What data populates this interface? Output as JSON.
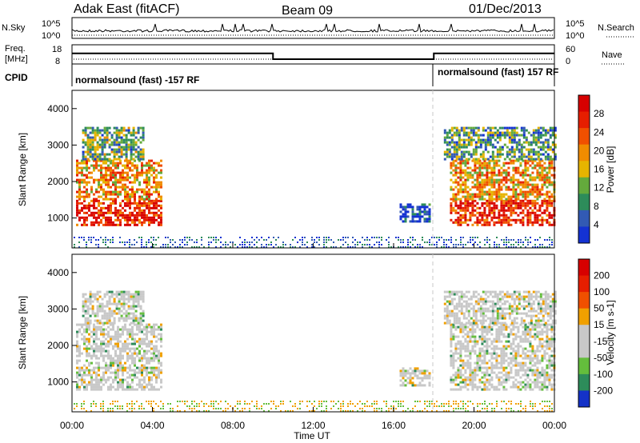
{
  "header": {
    "station": "Adak East (fitACF)",
    "beam": "Beam 09",
    "date": "01/Dec/2013"
  },
  "top_panels": {
    "nsky_label": "N.Sky",
    "nsky_ticks": [
      "10^5",
      "10^0"
    ],
    "nsearch_label": "N.Search",
    "freq_label_1": "Freq.",
    "freq_label_2": "[MHz]",
    "freq_ticks": [
      "18",
      "8"
    ],
    "nave_label": "Nave",
    "nave_ticks": [
      "60",
      "0"
    ],
    "cpid_label": "CPID",
    "cpid_left": "normalsound (fast) -157 RF",
    "cpid_right": "normalsound (fast) 157 RF"
  },
  "chart_data": [
    {
      "type": "line",
      "name": "frequency",
      "x_hours": [
        0,
        10,
        10,
        18,
        18,
        24
      ],
      "freq_mhz": [
        13.5,
        13.5,
        10.5,
        10.5,
        13.5,
        13.5
      ],
      "ylim": [
        8,
        18
      ]
    },
    {
      "type": "heatmap",
      "name": "power",
      "ylabel": "Slant Range [km]",
      "yticks": [
        "4000",
        "3000",
        "2000",
        "1000"
      ],
      "ylim": [
        180,
        4500
      ],
      "colorbar_label": "Power [dB]",
      "colorbar_ticks": [
        "28",
        "24",
        "20",
        "16",
        "12",
        "8",
        "4"
      ],
      "colors": [
        "#1432d2",
        "#325ab4",
        "#2d8c5a",
        "#64aa3c",
        "#e6b400",
        "#f08c00",
        "#f05000",
        "#e61e00",
        "#d70000"
      ],
      "regions": [
        {
          "x": [
            0.2,
            4.4
          ],
          "r": [
            800,
            1500
          ],
          "level": 0.85
        },
        {
          "x": [
            0.2,
            4.4
          ],
          "r": [
            1500,
            2600
          ],
          "level": 0.6
        },
        {
          "x": [
            0.5,
            3.5
          ],
          "r": [
            2600,
            3500
          ],
          "level": 0.35
        },
        {
          "x": [
            16.3,
            17.8
          ],
          "r": [
            900,
            1400
          ],
          "level": 0.1
        },
        {
          "x": [
            18.8,
            24
          ],
          "r": [
            800,
            1500
          ],
          "level": 0.85
        },
        {
          "x": [
            18.8,
            24
          ],
          "r": [
            1500,
            2600
          ],
          "level": 0.6
        },
        {
          "x": [
            18.5,
            24
          ],
          "r": [
            2600,
            3500
          ],
          "level": 0.3
        }
      ]
    },
    {
      "type": "heatmap",
      "name": "velocity",
      "ylabel": "Slant Range [km]",
      "yticks": [
        "4000",
        "3000",
        "2000",
        "1000"
      ],
      "ylim": [
        180,
        4500
      ],
      "colorbar_label": "Velocity [m s-1]",
      "colorbar_ticks": [
        "200",
        "100",
        "50",
        "15",
        "-15",
        "-50",
        "-100",
        "-200"
      ],
      "colors": [
        "#1432c8",
        "#2d8c5a",
        "#64be3c",
        "#c8c8c8",
        "#c8c8c8",
        "#f0a000",
        "#f05000",
        "#e61e00",
        "#d70000"
      ],
      "regions": [
        {
          "x": [
            0.2,
            4.4
          ],
          "r": [
            800,
            2600
          ],
          "level": 0.5
        },
        {
          "x": [
            0.5,
            3.5
          ],
          "r": [
            2600,
            3500
          ],
          "level": 0.5
        },
        {
          "x": [
            16.3,
            17.8
          ],
          "r": [
            900,
            1400
          ],
          "level": 0.5
        },
        {
          "x": [
            18.8,
            24
          ],
          "r": [
            800,
            2600
          ],
          "level": 0.5
        },
        {
          "x": [
            18.5,
            24
          ],
          "r": [
            2600,
            3500
          ],
          "level": 0.5
        }
      ]
    }
  ],
  "x_axis": {
    "label": "Time UT",
    "ticks": [
      "00:00",
      "04:00",
      "08:00",
      "12:00",
      "16:00",
      "20:00",
      "00:00"
    ],
    "range_hours": [
      0,
      24
    ]
  },
  "colors": {
    "axis": "#000000",
    "dashed": "#c8c8c8"
  }
}
